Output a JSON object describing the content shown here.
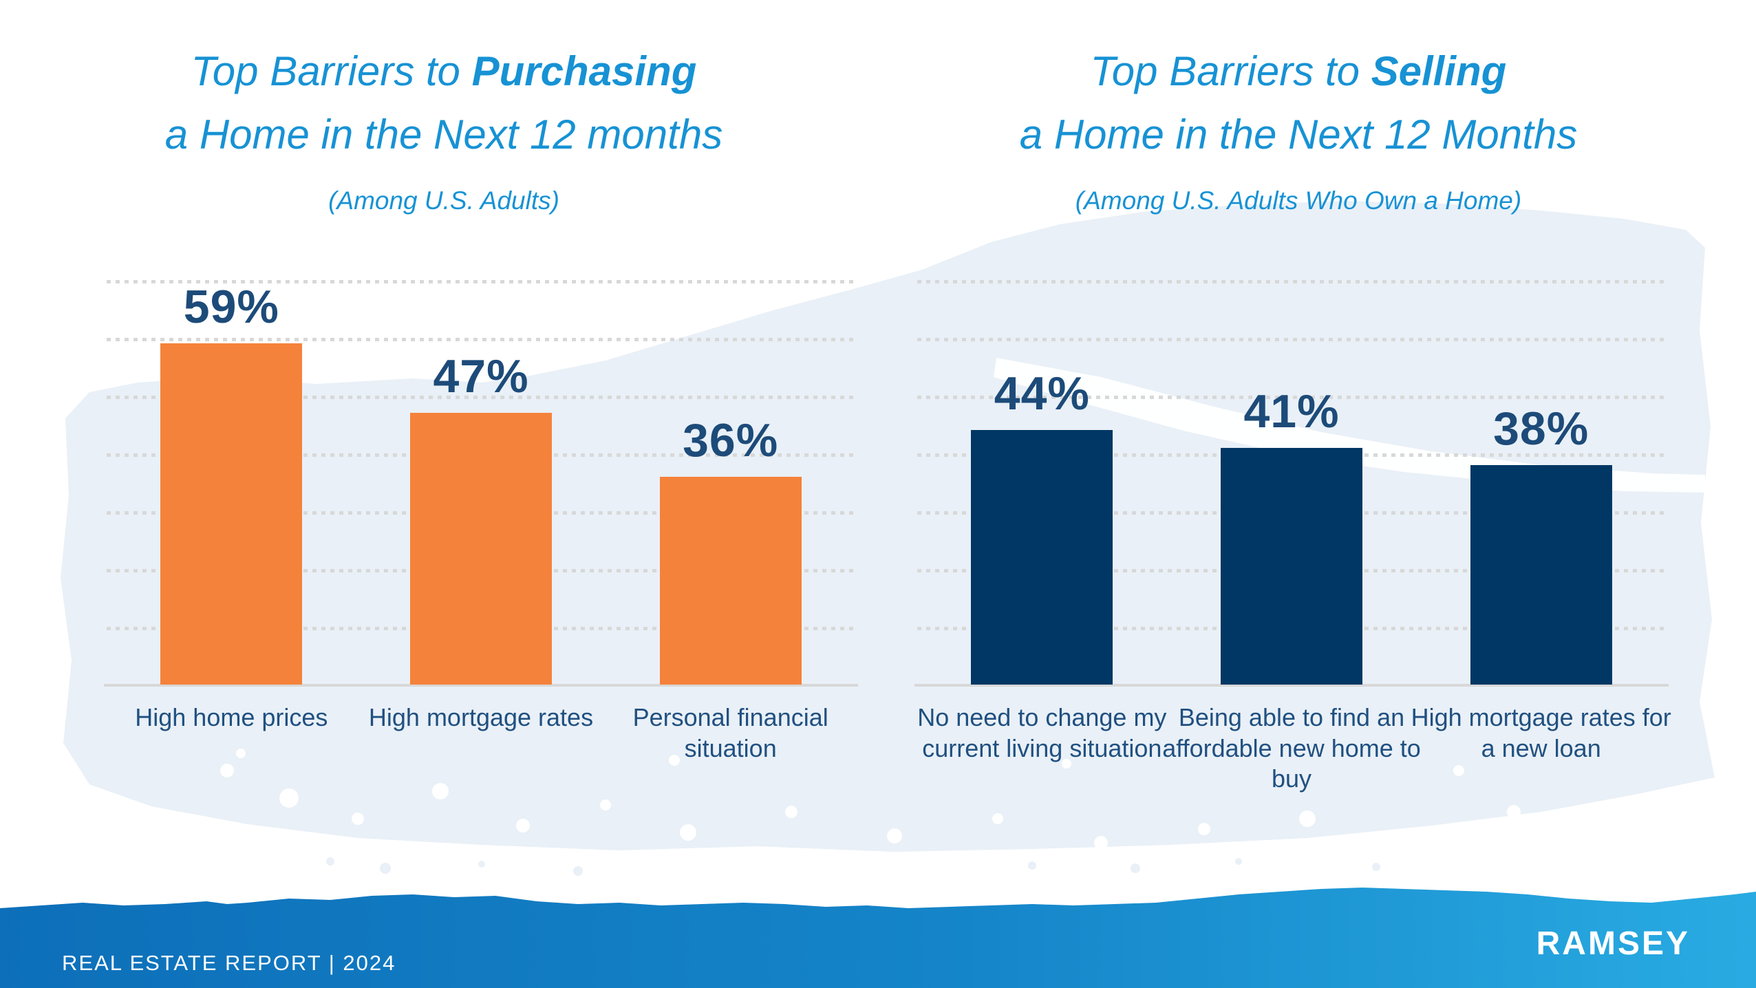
{
  "chart_data": [
    {
      "type": "bar",
      "title_prefix": "Top Barriers to ",
      "title_emphasis": "Purchasing",
      "title_line2": "a Home in the Next 12 months",
      "subtitle": "(Among U.S. Adults)",
      "categories": [
        "High home prices",
        "High mortgage rates",
        "Personal financial situation"
      ],
      "values": [
        59,
        47,
        36
      ],
      "value_labels": [
        "59%",
        "47%",
        "36%"
      ],
      "bar_color": "#f5823a",
      "ylim": [
        0,
        70
      ],
      "grid": "horizontal-dotted",
      "legend": "none",
      "xlabel": "",
      "ylabel": ""
    },
    {
      "type": "bar",
      "title_prefix": "Top Barriers to ",
      "title_emphasis": "Selling",
      "title_line2": "a Home in the Next 12 Months",
      "subtitle": "(Among U.S. Adults Who Own a Home)",
      "categories": [
        "No need to change my current living situation",
        "Being able to find an affordable new home to buy",
        "High mortgage rates for a new loan"
      ],
      "values": [
        44,
        41,
        38
      ],
      "value_labels": [
        "44%",
        "41%",
        "38%"
      ],
      "bar_color": "#003764",
      "ylim": [
        0,
        70
      ],
      "grid": "horizontal-dotted",
      "legend": "none",
      "xlabel": "",
      "ylabel": ""
    }
  ],
  "footer": {
    "report_label": "REAL ESTATE REPORT | 2024",
    "brand": "RAMSEY"
  },
  "colors": {
    "title_blue": "#1792d4",
    "orange_bar": "#f5823a",
    "navy_bar": "#003764",
    "value_label": "#1d4b79",
    "category_label": "#205080",
    "gridline": "#d8d8d8",
    "background_wash": "#e9f0f7",
    "footer_gradient_left": "#0d6fb9",
    "footer_gradient_right": "#29abe2",
    "footer_text": "#ffffff"
  }
}
